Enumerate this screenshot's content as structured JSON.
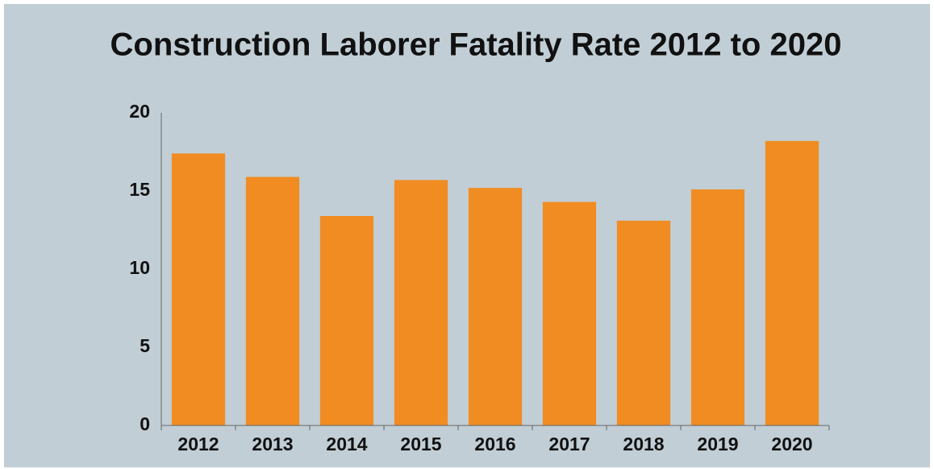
{
  "chart_data": {
    "type": "bar",
    "title": "Construction Laborer Fatality Rate 2012 to 2020",
    "categories": [
      "2012",
      "2013",
      "2014",
      "2015",
      "2016",
      "2017",
      "2018",
      "2019",
      "2020"
    ],
    "values": [
      17.4,
      15.9,
      13.4,
      15.7,
      15.2,
      14.3,
      13.1,
      15.1,
      18.2
    ],
    "color": "#f08c22",
    "ylim": [
      0,
      20
    ],
    "yticks": [
      0,
      5,
      10,
      15,
      20
    ],
    "grid": false
  }
}
